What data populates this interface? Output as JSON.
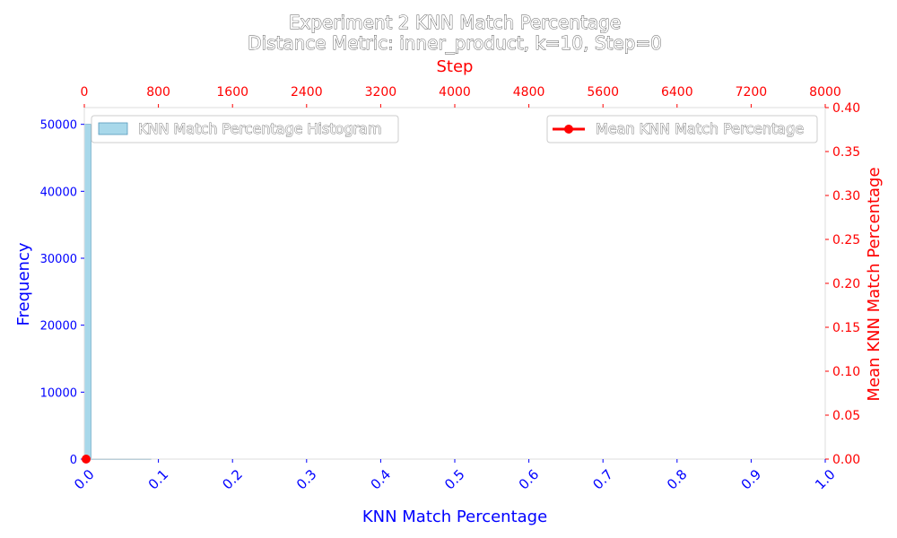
{
  "chart_data": {
    "type": "bar",
    "title_line1": "Experiment 2 KNN Match Percentage",
    "title_line2": "Distance Metric: inner_product, k=10, Step=0",
    "xlabel": "KNN Match Percentage",
    "ylabel": "Frequency",
    "top_xlabel": "Step",
    "right_ylabel": "Mean KNN Match Percentage",
    "xlim": [
      0.0,
      1.0
    ],
    "ylim": [
      0,
      52500
    ],
    "top_xlim": [
      0,
      8000
    ],
    "right_ylim": [
      0.0,
      0.4
    ],
    "x_ticks": [
      "0.0",
      "0.1",
      "0.2",
      "0.3",
      "0.4",
      "0.5",
      "0.6",
      "0.7",
      "0.8",
      "0.9",
      "1.0"
    ],
    "y_ticks": [
      "0",
      "10000",
      "20000",
      "30000",
      "40000",
      "50000"
    ],
    "top_x_ticks": [
      "0",
      "800",
      "1600",
      "2400",
      "3200",
      "4000",
      "4800",
      "5600",
      "6400",
      "7200",
      "8000"
    ],
    "right_y_ticks": [
      "0.00",
      "0.05",
      "0.10",
      "0.15",
      "0.20",
      "0.25",
      "0.30",
      "0.35",
      "0.40"
    ],
    "histogram": {
      "name": "KNN Match Percentage Histogram",
      "bins": [
        {
          "x0": 0.0,
          "x1": 0.009,
          "count": 50000
        },
        {
          "x0": 0.009,
          "x1": 0.09,
          "count": 40
        }
      ]
    },
    "mean_series": {
      "name": "Mean KNN Match Percentage",
      "x": [
        0
      ],
      "y": [
        0.0
      ]
    },
    "legend_left": "top-left",
    "legend_right": "top-right",
    "grid": false,
    "colors": {
      "bar_fill": "#a8d8ea",
      "bar_edge": "#5599bb",
      "left_axis": "#0000ff",
      "right_axis": "#ff0000",
      "mean_line": "#ff0000"
    }
  }
}
